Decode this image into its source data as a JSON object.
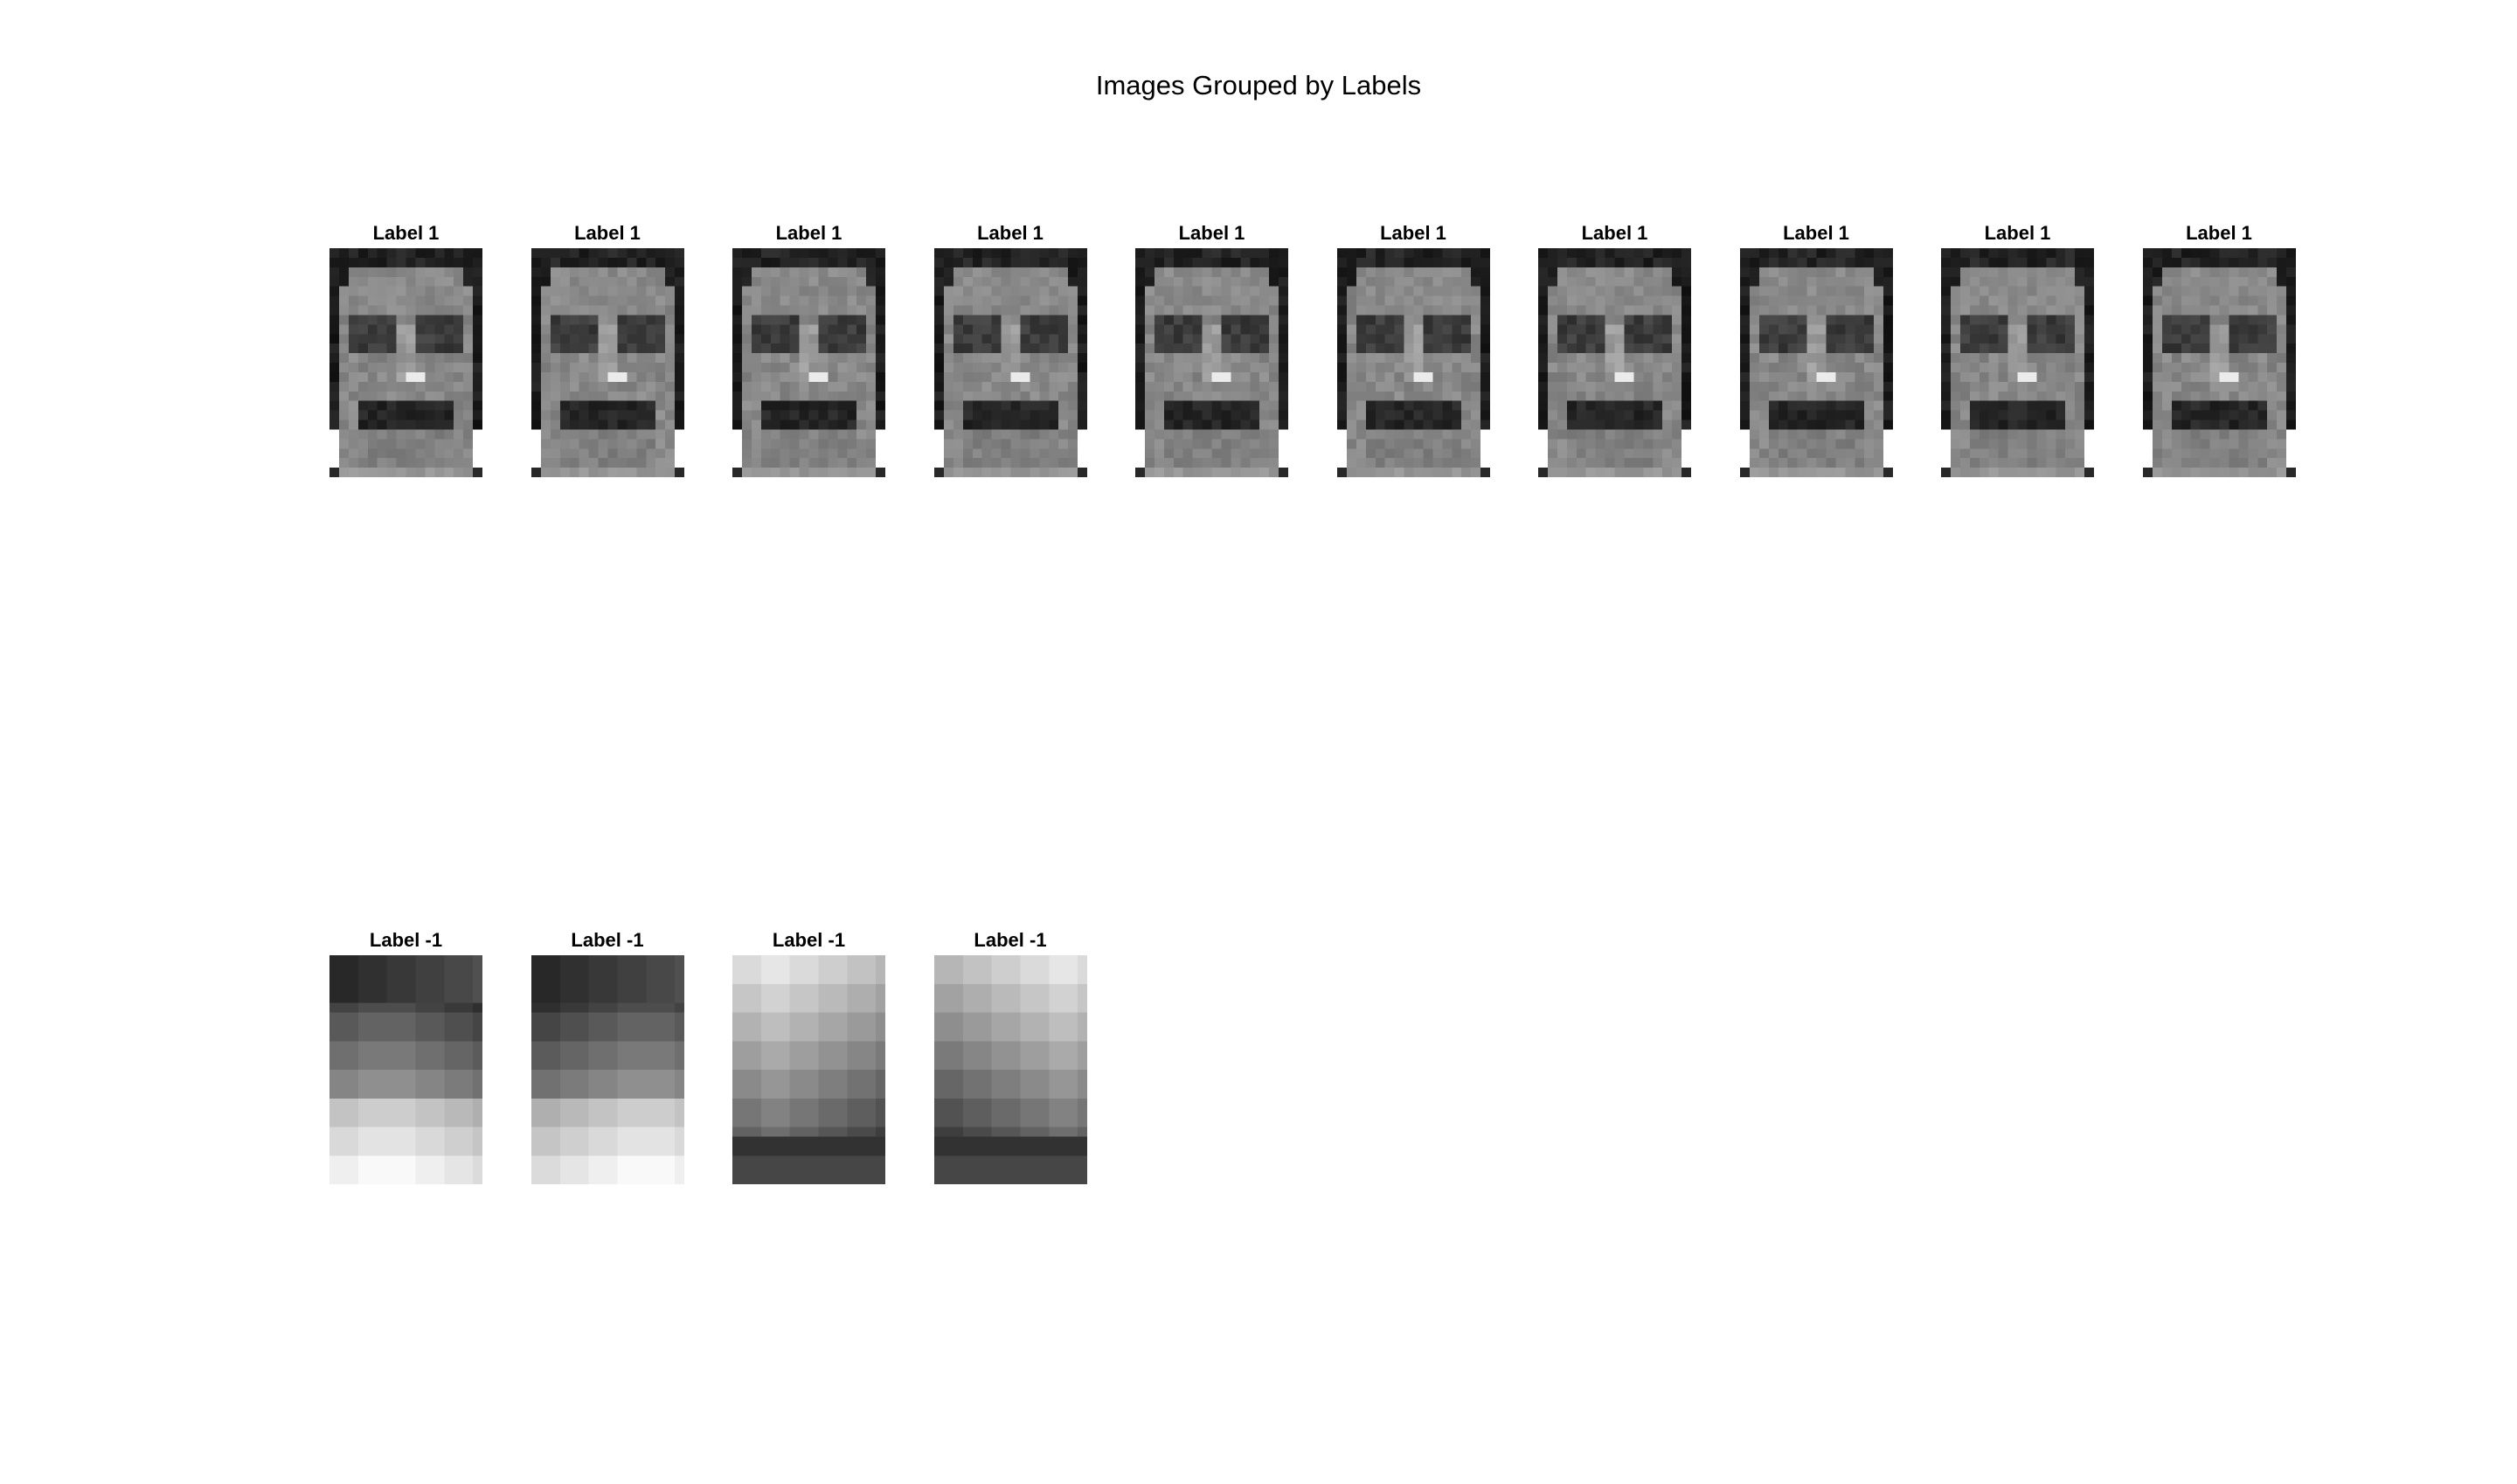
{
  "figure": {
    "title": "Images Grouped by Labels"
  },
  "groups": [
    {
      "label": "Label 1",
      "images": [
        {
          "title": "Label 1",
          "content": "grayscale face photo"
        },
        {
          "title": "Label 1",
          "content": "grayscale face photo"
        },
        {
          "title": "Label 1",
          "content": "grayscale face photo"
        },
        {
          "title": "Label 1",
          "content": "grayscale face photo"
        },
        {
          "title": "Label 1",
          "content": "grayscale face photo"
        },
        {
          "title": "Label 1",
          "content": "grayscale face photo"
        },
        {
          "title": "Label 1",
          "content": "grayscale face photo"
        },
        {
          "title": "Label 1",
          "content": "grayscale face photo"
        },
        {
          "title": "Label 1",
          "content": "grayscale face photo"
        },
        {
          "title": "Label 1",
          "content": "grayscale face photo"
        }
      ]
    },
    {
      "label": "Label -1",
      "images": [
        {
          "title": "Label -1",
          "content": "grayscale gradient blocks"
        },
        {
          "title": "Label -1",
          "content": "grayscale gradient blocks"
        },
        {
          "title": "Label -1",
          "content": "grayscale gradient blocks"
        },
        {
          "title": "Label -1",
          "content": "grayscale gradient blocks"
        }
      ]
    }
  ],
  "colors": {
    "background": "#ffffff",
    "text": "#000000"
  }
}
